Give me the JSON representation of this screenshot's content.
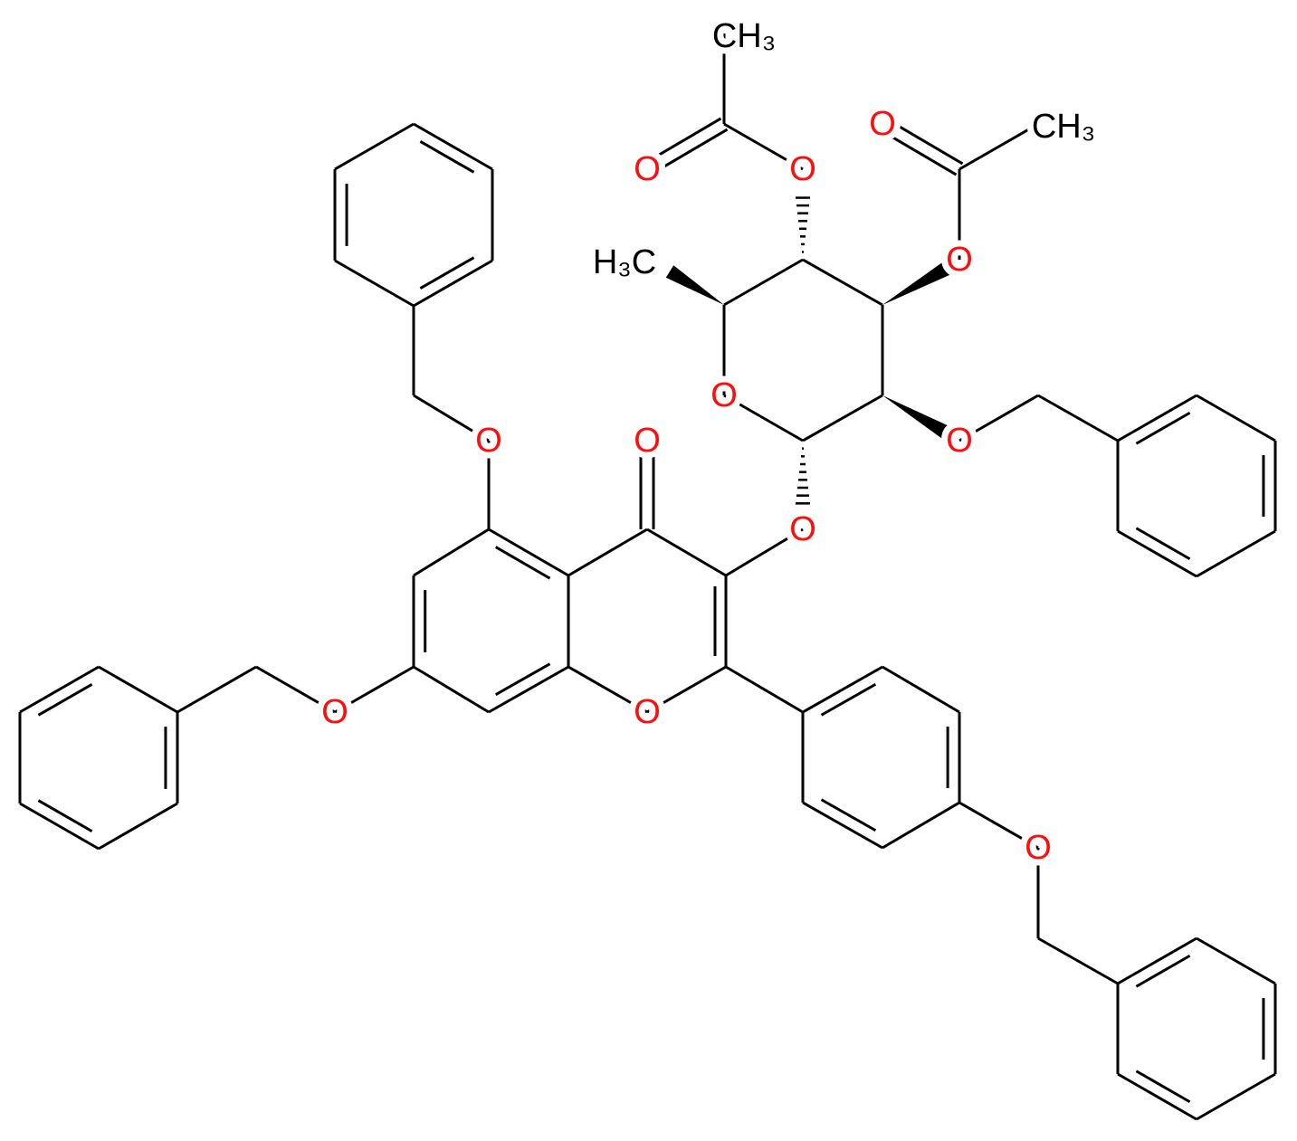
{
  "atom_labels": [
    "CH₃",
    "O",
    "O",
    "O",
    "CH₃",
    "H₃C",
    "O",
    "O",
    "O",
    "O",
    "O",
    "O",
    "O",
    "O",
    "O"
  ]
}
